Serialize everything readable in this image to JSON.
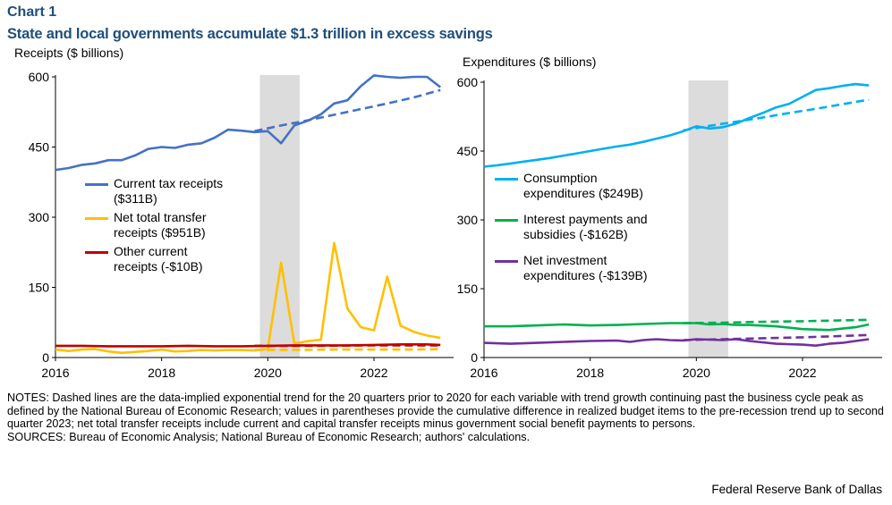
{
  "header": {
    "chart_number": "Chart 1",
    "title": "State and local governments accumulate $1.3 trillion in excess savings"
  },
  "notes": {
    "notes_text": "NOTES: Dashed lines are the data-implied exponential trend for the 20 quarters prior to 2020 for each variable with trend growth continuing past the business cycle peak as defined by the National Bureau of Economic Research; values in parentheses provide the cumulative difference in realized budget items to the pre-recession trend up to second quarter 2023; net total transfer receipts include current and capital transfer receipts minus government social benefit payments to persons.",
    "sources_text": "SOURCES: Bureau of Economic Analysis; National Bureau of Economic Research; authors' calculations.",
    "credit": "Federal Reserve Bank of Dallas"
  },
  "colors": {
    "recession_shade": "#dcdcdc",
    "blue": "#4472c4",
    "yellow": "#ffc000",
    "red": "#c00000",
    "cyan": "#00b0f0",
    "green": "#00b050",
    "purple": "#7030a0"
  },
  "chart_data": [
    {
      "type": "line",
      "title": "Receipts",
      "ylabel": "Receipts ($ billions)",
      "xlim": [
        2016,
        2023.5
      ],
      "ylim": [
        0,
        600
      ],
      "yticks": [
        "0",
        "150",
        "300",
        "450",
        "600"
      ],
      "xticks": [
        "2016",
        "2018",
        "2020",
        "2022"
      ],
      "recession_shade": [
        2019.85,
        2020.6
      ],
      "legend": [
        {
          "label_line1": "Current tax receipts",
          "label_line2": "($311B)",
          "color": "#4472c4"
        },
        {
          "label_line1": "Net total transfer",
          "label_line2": "receipts ($951B)",
          "color": "#ffc000"
        },
        {
          "label_line1": "Other current",
          "label_line2": "receipts (-$10B)",
          "color": "#c00000"
        }
      ],
      "series": [
        {
          "name": "Current tax receipts",
          "color": "#4472c4",
          "style": "solid",
          "x": [
            2016.0,
            2016.25,
            2016.5,
            2016.75,
            2017.0,
            2017.25,
            2017.5,
            2017.75,
            2018.0,
            2018.25,
            2018.5,
            2018.75,
            2019.0,
            2019.25,
            2019.5,
            2019.75,
            2020.0,
            2020.25,
            2020.5,
            2020.75,
            2021.0,
            2021.25,
            2021.5,
            2021.75,
            2022.0,
            2022.25,
            2022.5,
            2022.75,
            2023.0,
            2023.25
          ],
          "y": [
            401,
            405,
            412,
            415,
            422,
            422,
            432,
            446,
            450,
            448,
            455,
            458,
            470,
            487,
            485,
            482,
            484,
            458,
            496,
            506,
            520,
            543,
            550,
            580,
            603,
            600,
            598,
            600,
            600,
            578
          ]
        },
        {
          "name": "Current tax receipts trend",
          "color": "#4472c4",
          "style": "dashed",
          "x": [
            2019.75,
            2020.25,
            2020.75,
            2021.25,
            2021.75,
            2022.25,
            2022.75,
            2023.25
          ],
          "y": [
            484,
            496,
            507,
            519,
            531,
            543,
            556,
            572
          ]
        },
        {
          "name": "Net total transfer receipts",
          "color": "#ffc000",
          "style": "solid",
          "x": [
            2016.0,
            2016.25,
            2016.5,
            2016.75,
            2017.0,
            2017.25,
            2017.5,
            2017.75,
            2018.0,
            2018.25,
            2018.5,
            2018.75,
            2019.0,
            2019.25,
            2019.5,
            2019.75,
            2020.0,
            2020.25,
            2020.5,
            2020.75,
            2021.0,
            2021.25,
            2021.5,
            2021.75,
            2022.0,
            2022.25,
            2022.5,
            2022.75,
            2023.0,
            2023.25
          ],
          "y": [
            17,
            14,
            17,
            18,
            13,
            10,
            12,
            14,
            17,
            13,
            14,
            16,
            15,
            16,
            16,
            15,
            18,
            203,
            30,
            35,
            38,
            245,
            105,
            65,
            58,
            173,
            68,
            55,
            47,
            42
          ]
        },
        {
          "name": "Net total transfer receipts trend",
          "color": "#ffc000",
          "style": "dashed",
          "x": [
            2019.75,
            2020.5,
            2021.25,
            2022.0,
            2022.75,
            2023.25
          ],
          "y": [
            16,
            16,
            17,
            17,
            17,
            18
          ]
        },
        {
          "name": "Other current receipts",
          "color": "#c00000",
          "style": "solid",
          "x": [
            2016.0,
            2016.5,
            2017.0,
            2017.5,
            2018.0,
            2018.5,
            2019.0,
            2019.5,
            2020.0,
            2020.5,
            2021.0,
            2021.5,
            2022.0,
            2022.5,
            2023.0,
            2023.25
          ],
          "y": [
            25,
            25,
            24,
            24,
            24,
            25,
            24,
            24,
            25,
            26,
            26,
            26,
            27,
            28,
            28,
            27
          ]
        },
        {
          "name": "Other current receipts trend",
          "color": "#c00000",
          "style": "dashed",
          "x": [
            2019.75,
            2021.0,
            2022.0,
            2023.25
          ],
          "y": [
            25,
            25,
            26,
            26
          ]
        }
      ]
    },
    {
      "type": "line",
      "title": "Expenditures",
      "ylabel": "Expenditures  ($ billions)",
      "xlim": [
        2016,
        2023.5
      ],
      "ylim": [
        0,
        600
      ],
      "yticks": [
        "0",
        "150",
        "300",
        "450",
        "600"
      ],
      "xticks": [
        "2016",
        "2018",
        "2020",
        "2022"
      ],
      "recession_shade": [
        2019.85,
        2020.6
      ],
      "legend": [
        {
          "label_line1": "Consumption",
          "label_line2": "expenditures ($249B)",
          "color": "#00b0f0"
        },
        {
          "label_line1": "Interest payments and",
          "label_line2": "subsidies (-$162B)",
          "color": "#00b050"
        },
        {
          "label_line1": "Net investment",
          "label_line2": "expenditures (-$139B)",
          "color": "#7030a0"
        }
      ],
      "series": [
        {
          "name": "Consumption expenditures",
          "color": "#00b0f0",
          "style": "solid",
          "x": [
            2016.0,
            2016.25,
            2016.5,
            2016.75,
            2017.0,
            2017.25,
            2017.5,
            2017.75,
            2018.0,
            2018.25,
            2018.5,
            2018.75,
            2019.0,
            2019.25,
            2019.5,
            2019.75,
            2020.0,
            2020.25,
            2020.5,
            2020.75,
            2021.0,
            2021.25,
            2021.5,
            2021.75,
            2022.0,
            2022.25,
            2022.5,
            2022.75,
            2023.0,
            2023.25
          ],
          "y": [
            416,
            419,
            423,
            427,
            431,
            435,
            440,
            445,
            450,
            455,
            460,
            464,
            470,
            477,
            484,
            493,
            504,
            499,
            502,
            510,
            522,
            533,
            545,
            553,
            568,
            583,
            587,
            592,
            596,
            593
          ]
        },
        {
          "name": "Consumption expenditures trend",
          "color": "#00b0f0",
          "style": "dashed",
          "x": [
            2019.75,
            2020.25,
            2020.75,
            2021.25,
            2021.75,
            2022.25,
            2022.75,
            2023.25
          ],
          "y": [
            495,
            505,
            514,
            523,
            533,
            542,
            552,
            562
          ]
        },
        {
          "name": "Interest payments and subsidies",
          "color": "#00b050",
          "style": "solid",
          "x": [
            2016.0,
            2016.5,
            2017.0,
            2017.5,
            2018.0,
            2018.5,
            2019.0,
            2019.5,
            2020.0,
            2020.25,
            2020.5,
            2020.75,
            2021.0,
            2021.5,
            2022.0,
            2022.5,
            2023.0,
            2023.25
          ],
          "y": [
            68,
            68,
            70,
            72,
            70,
            71,
            73,
            75,
            75,
            72,
            73,
            71,
            71,
            68,
            62,
            60,
            66,
            72
          ]
        },
        {
          "name": "Interest payments and subsidies trend",
          "color": "#00b050",
          "style": "dashed",
          "x": [
            2019.75,
            2020.5,
            2021.25,
            2022.0,
            2022.75,
            2023.25
          ],
          "y": [
            75,
            76,
            78,
            79,
            81,
            82
          ]
        },
        {
          "name": "Net investment expenditures",
          "color": "#7030a0",
          "style": "solid",
          "x": [
            2016.0,
            2016.5,
            2017.0,
            2017.5,
            2018.0,
            2018.5,
            2018.75,
            2019.0,
            2019.25,
            2019.5,
            2019.75,
            2020.0,
            2020.25,
            2020.5,
            2020.75,
            2021.0,
            2021.5,
            2022.0,
            2022.25,
            2022.5,
            2022.75,
            2023.0,
            2023.25
          ],
          "y": [
            32,
            30,
            32,
            34,
            36,
            37,
            34,
            38,
            40,
            38,
            37,
            40,
            39,
            38,
            40,
            36,
            30,
            28,
            26,
            30,
            32,
            36,
            40
          ]
        },
        {
          "name": "Net investment expenditures trend",
          "color": "#7030a0",
          "style": "dashed",
          "x": [
            2019.75,
            2020.5,
            2021.25,
            2022.0,
            2022.75,
            2023.25
          ],
          "y": [
            38,
            40,
            42,
            44,
            47,
            49
          ]
        }
      ]
    }
  ]
}
